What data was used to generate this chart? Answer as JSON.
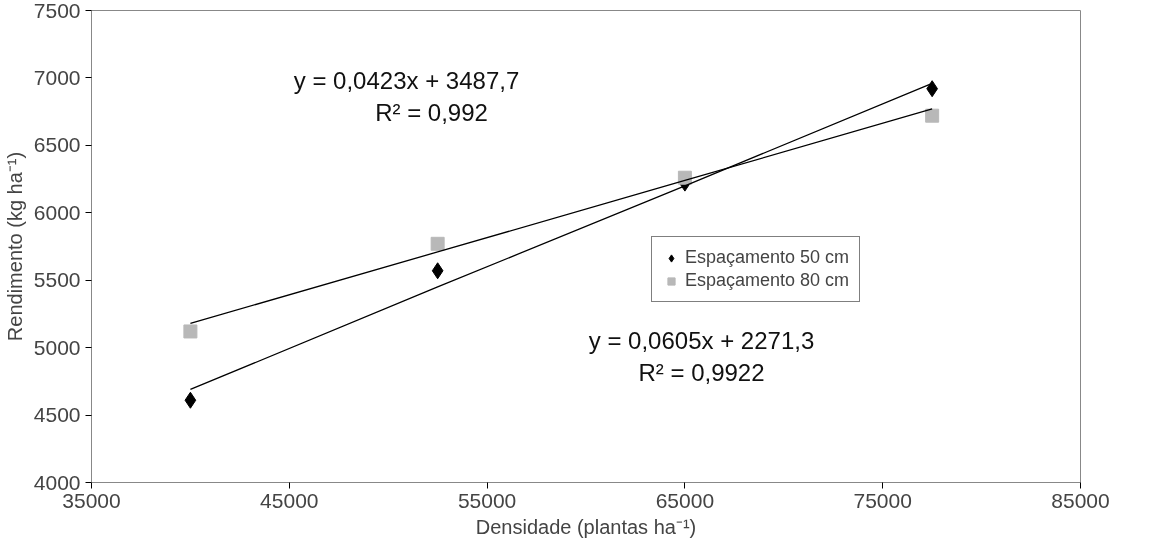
{
  "chart_data": {
    "type": "scatter",
    "xlabel": "Densidade (plantas ha⁻¹)",
    "ylabel": "Rendimento (kg ha⁻¹)",
    "x": [
      40000,
      52500,
      65000,
      77500
    ],
    "series": [
      {
        "name": "Espaçamento 50 cm",
        "color": "#000000",
        "marker": "diamond",
        "values": [
          4610,
          5570,
          6220,
          6920
        ]
      },
      {
        "name": "Espaçamento 80 cm",
        "color": "#b8b8b8",
        "marker": "square",
        "values": [
          5120,
          5770,
          6260,
          6720
        ]
      },
      {
        "type": "line",
        "color": "#000000",
        "values": [
          4690,
          5450,
          6200,
          6960
        ]
      },
      {
        "type": "line",
        "color": "#000000",
        "values": [
          5180,
          5710,
          6240,
          6770
        ]
      }
    ],
    "xlim": [
      35000,
      85000
    ],
    "xticks": [
      35000,
      45000,
      55000,
      65000,
      75000,
      85000
    ],
    "ylim": [
      4000,
      7500
    ],
    "yticks": [
      4000,
      4500,
      5000,
      5500,
      6000,
      6500,
      7000,
      7500
    ],
    "grid": false,
    "legend": "right",
    "annotations": [
      "y = 0,0423x + 3487,7",
      "R² = 0,992",
      "y = 0,0605x + 2271,3",
      "R² = 0,9922"
    ]
  }
}
